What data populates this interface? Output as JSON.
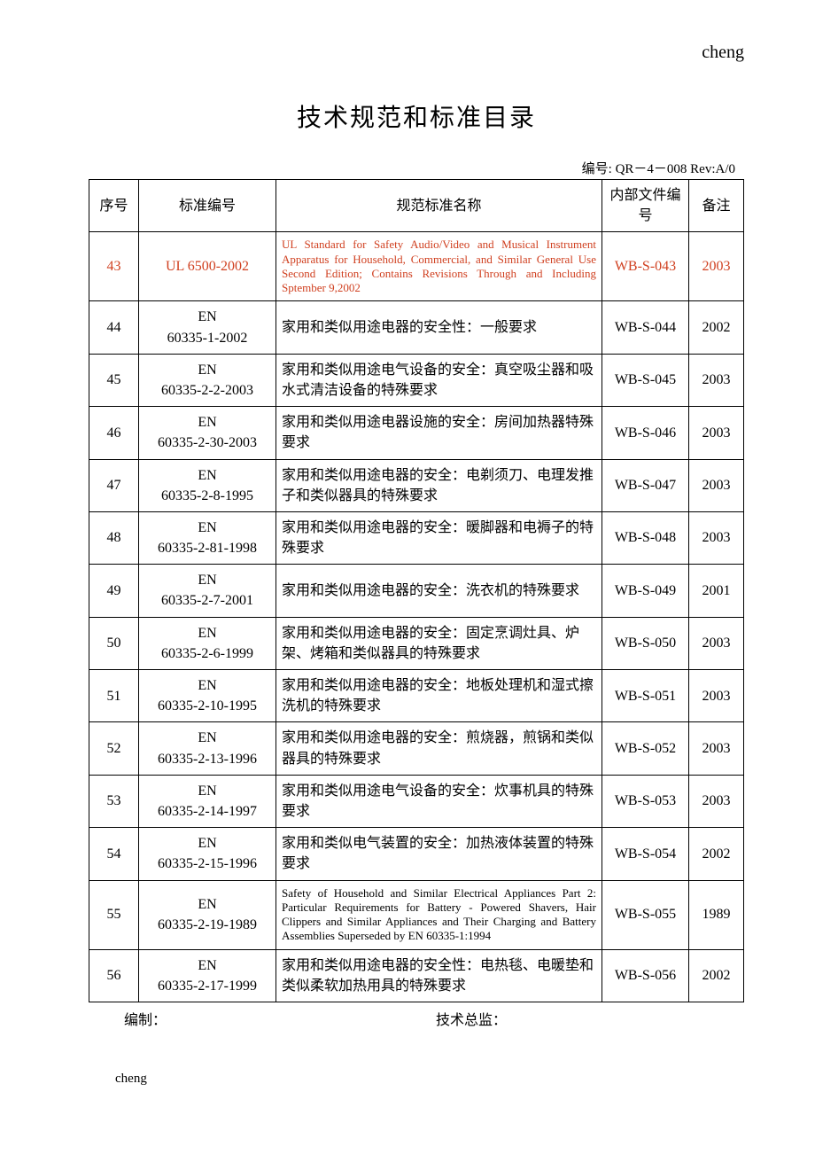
{
  "header_right": "cheng",
  "title": "技术规范和标准目录",
  "doc_code": "编号: QR－4－008 Rev:A/0",
  "columns": [
    "序号",
    "标准编号",
    "规范标准名称",
    "内部文件编号",
    "备注"
  ],
  "rows": [
    {
      "seq": "43",
      "std": "UL   6500-2002",
      "name": "UL Standard for Safety Audio/Video and Musical Instrument Apparatus for Household, Commercial, and Similar General Use Second Edition; Contains Revisions Through and Including Sptember 9,2002",
      "name_en": true,
      "int": "WB-S-043",
      "note": "2003",
      "highlight": true
    },
    {
      "seq": "44",
      "std": "EN 60335-1-2002",
      "name": "家用和类似用途电器的安全性：一般要求",
      "name_en": false,
      "int": "WB-S-044",
      "note": "2002"
    },
    {
      "seq": "45",
      "std": "EN 60335-2-2-2003",
      "name": "家用和类似用途电气设备的安全：真空吸尘器和吸水式清洁设备的特殊要求",
      "name_en": false,
      "int": "WB-S-045",
      "note": "2003"
    },
    {
      "seq": "46",
      "std": "EN 60335-2-30-2003",
      "name": "家用和类似用途电器设施的安全：房间加热器特殊要求",
      "name_en": false,
      "int": "WB-S-046",
      "note": "2003"
    },
    {
      "seq": "47",
      "std": "EN 60335-2-8-1995",
      "name": "家用和类似用途电器的安全：电剃须刀、电理发推子和类似器具的特殊要求",
      "name_en": false,
      "int": "WB-S-047",
      "note": "2003"
    },
    {
      "seq": "48",
      "std": "EN 60335-2-81-1998",
      "name": "家用和类似用途电器的安全：暖脚器和电褥子的特殊要求",
      "name_en": false,
      "int": "WB-S-048",
      "note": "2003"
    },
    {
      "seq": "49",
      "std": "EN 60335-2-7-2001",
      "name": "家用和类似用途电器的安全：洗衣机的特殊要求",
      "name_en": false,
      "int": "WB-S-049",
      "note": "2001"
    },
    {
      "seq": "50",
      "std": "EN 60335-2-6-1999",
      "name": "家用和类似用途电器的安全：固定烹调灶具、炉架、烤箱和类似器具的特殊要求",
      "name_en": false,
      "int": "WB-S-050",
      "note": "2003"
    },
    {
      "seq": "51",
      "std": "EN 60335-2-10-1995",
      "name": "家用和类似用途电器的安全：地板处理机和湿式擦洗机的特殊要求",
      "name_en": false,
      "int": "WB-S-051",
      "note": "2003"
    },
    {
      "seq": "52",
      "std": "EN 60335-2-13-1996",
      "name": "家用和类似用途电器的安全：煎烧器，煎锅和类似器具的特殊要求",
      "name_en": false,
      "int": "WB-S-052",
      "note": "2003"
    },
    {
      "seq": "53",
      "std": "EN 60335-2-14-1997",
      "name": "家用和类似用途电气设备的安全：炊事机具的特殊要求",
      "name_en": false,
      "int": "WB-S-053",
      "note": "2003"
    },
    {
      "seq": "54",
      "std": "EN 60335-2-15-1996",
      "name": "家用和类似电气装置的安全：加热液体装置的特殊要求",
      "name_en": false,
      "int": "WB-S-054",
      "note": "2002"
    },
    {
      "seq": "55",
      "std": "EN 60335-2-19-1989",
      "name": "Safety of Household and Similar Electrical Appliances Part 2: Particular Requirements for Battery - Powered Shavers, Hair Clippers and Similar Appliances and Their Charging and Battery Assemblies Superseded by EN 60335-1:1994",
      "name_en": true,
      "int": "WB-S-055",
      "note": "1989"
    },
    {
      "seq": "56",
      "std": "EN 60335-2-17-1999",
      "name": "家用和类似用途电器的安全性：电热毯、电暖垫和类似柔软加热用具的特殊要求",
      "name_en": false,
      "int": "WB-S-056",
      "note": "2002"
    }
  ],
  "footer": {
    "label1": "编制：",
    "label2": "技术总监："
  },
  "footer_left": "cheng"
}
